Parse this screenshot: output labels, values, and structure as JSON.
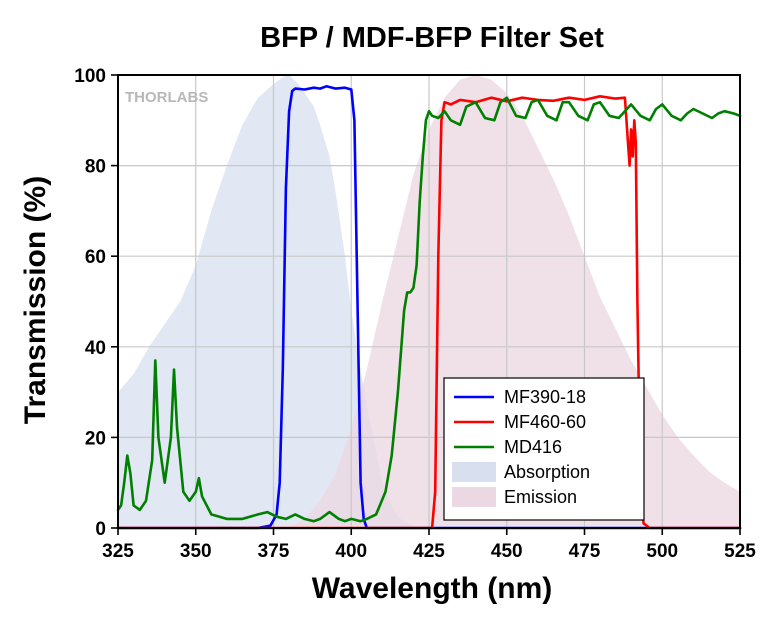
{
  "chart_data": {
    "type": "line",
    "title": "BFP / MDF-BFP Filter Set",
    "xlabel": "Wavelength (nm)",
    "ylabel": "Transmission (%)",
    "xlim": [
      325,
      525
    ],
    "ylim": [
      0,
      100
    ],
    "xticks": [
      "325",
      "350",
      "375",
      "400",
      "425",
      "450",
      "475",
      "500",
      "525"
    ],
    "yticks": [
      "0",
      "20",
      "40",
      "60",
      "80",
      "100"
    ],
    "grid": true,
    "legend_position": "bottom-right",
    "watermark": "THORLABS",
    "series": [
      {
        "name": "MF390-18",
        "kind": "line",
        "color": "#0000ff",
        "x": [
          325,
          370,
          374,
          376,
          377,
          378,
          379,
          380,
          381,
          382,
          385,
          388,
          390,
          392,
          395,
          398,
          400,
          401,
          402,
          403,
          404,
          405,
          410,
          525
        ],
        "y": [
          0,
          0,
          0.5,
          3,
          10,
          35,
          75,
          92,
          96.5,
          97,
          96.8,
          97.2,
          97,
          97.5,
          97,
          97.2,
          96.8,
          90,
          50,
          10,
          2,
          0,
          0,
          0
        ]
      },
      {
        "name": "MF460-60",
        "kind": "line",
        "color": "#ff0000",
        "x": [
          325,
          426,
          427,
          428,
          429,
          430,
          432,
          435,
          440,
          445,
          450,
          455,
          460,
          465,
          470,
          475,
          480,
          485,
          488,
          489,
          489.5,
          490,
          490.5,
          491,
          491.5,
          492,
          493,
          494,
          496,
          525
        ],
        "y": [
          0,
          0,
          8,
          60,
          90,
          94,
          93.5,
          94.5,
          94,
          95,
          94.2,
          95,
          94.5,
          94.3,
          95,
          94.5,
          95.3,
          94.8,
          95,
          85,
          80,
          88,
          82,
          90,
          85,
          50,
          8,
          1,
          0,
          0
        ]
      },
      {
        "name": "MD416",
        "kind": "line",
        "color": "#008000",
        "x": [
          325,
          326,
          327,
          328,
          329,
          330,
          332,
          334,
          336,
          337,
          338,
          340,
          342,
          343,
          344,
          346,
          348,
          350,
          351,
          352,
          355,
          360,
          365,
          370,
          373,
          376,
          379,
          382,
          385,
          388,
          390,
          393,
          396,
          398,
          400,
          403,
          405,
          408,
          411,
          413,
          415,
          417,
          418,
          419,
          420,
          421,
          422,
          423,
          424,
          425,
          426,
          428,
          430,
          432,
          435,
          437,
          440,
          443,
          446,
          448,
          450,
          453,
          456,
          458,
          460,
          463,
          466,
          468,
          470,
          473,
          476,
          478,
          480,
          483,
          486,
          488,
          490,
          493,
          496,
          498,
          500,
          503,
          506,
          508,
          510,
          513,
          516,
          518,
          520,
          523,
          525
        ],
        "y": [
          4,
          5,
          10,
          16,
          12,
          5,
          4,
          6,
          15,
          37,
          20,
          10,
          20,
          35,
          22,
          8,
          6,
          8,
          11,
          7,
          3,
          2,
          2,
          3,
          3.5,
          2.5,
          2,
          3,
          2,
          1.5,
          2,
          3.5,
          2,
          1.5,
          2,
          1.5,
          2,
          3,
          8,
          16,
          30,
          48,
          52,
          52,
          53,
          58,
          72,
          82,
          90,
          92,
          91,
          90.5,
          92,
          90,
          89,
          93,
          94,
          90.5,
          90,
          94,
          95,
          91,
          90.5,
          94,
          94.5,
          91,
          90,
          94,
          94,
          91,
          90,
          93.5,
          94,
          91,
          90.5,
          92,
          93.5,
          91,
          90,
          92.5,
          93.5,
          91,
          90,
          91.5,
          92.5,
          91.5,
          90.5,
          91.5,
          92,
          91.5,
          91
        ]
      },
      {
        "name": "Absorption",
        "kind": "area",
        "color": "#d8e0ef",
        "x": [
          325,
          330,
          335,
          340,
          345,
          350,
          355,
          360,
          365,
          370,
          375,
          378,
          380,
          383,
          385,
          388,
          390,
          393,
          395,
          398,
          400,
          403,
          405,
          408,
          410,
          413,
          415,
          418,
          420,
          423,
          425
        ],
        "y": [
          30,
          34,
          40,
          45,
          50,
          58,
          70,
          80,
          89,
          95,
          98,
          99.5,
          100,
          98,
          96,
          93,
          89,
          82,
          74,
          60,
          48,
          35,
          27,
          17,
          10,
          5,
          2.5,
          1,
          0.4,
          0.1,
          0
        ]
      },
      {
        "name": "Emission",
        "kind": "area",
        "color": "#ecd8e3",
        "x": [
          380,
          385,
          390,
          395,
          400,
          405,
          410,
          415,
          420,
          425,
          430,
          435,
          440,
          445,
          450,
          455,
          460,
          465,
          470,
          475,
          480,
          485,
          490,
          495,
          500,
          505,
          510,
          515,
          520,
          525
        ],
        "y": [
          0,
          2,
          6,
          12,
          22,
          35,
          50,
          64,
          78,
          88,
          95,
          99,
          100,
          99,
          96,
          91,
          84,
          77,
          69,
          60,
          51,
          44,
          37,
          31,
          25,
          20,
          16,
          12.5,
          10,
          8
        ]
      }
    ]
  }
}
